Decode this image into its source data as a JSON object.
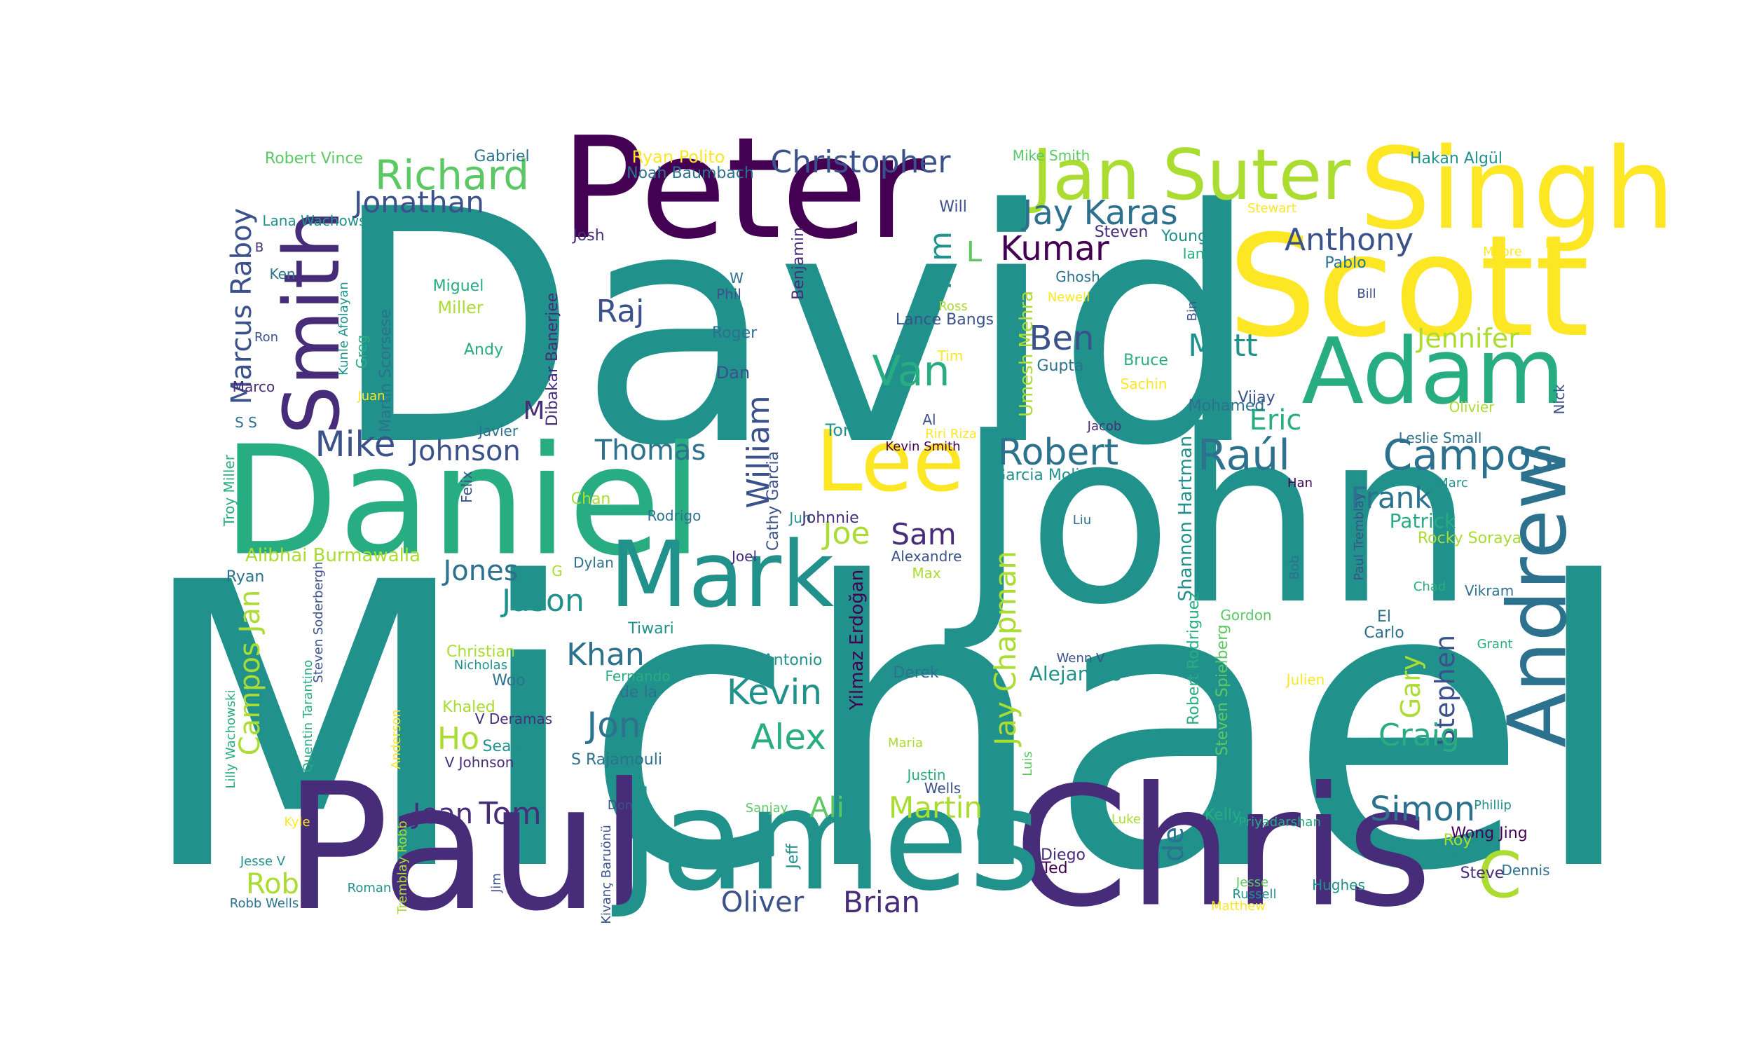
{
  "colors": {
    "c1": "#440154",
    "c2": "#472c7a",
    "c3": "#3b518b",
    "c4": "#2c718e",
    "c5": "#21918c",
    "c6": "#27ad81",
    "c7": "#5cc863",
    "c8": "#aadc32",
    "c9": "#fde725"
  },
  "words": [
    {
      "text": "Michael",
      "color": "c5"
    },
    {
      "text": "David",
      "color": "c5"
    },
    {
      "text": "John",
      "color": "c5"
    },
    {
      "text": "Daniel",
      "color": "c6"
    },
    {
      "text": "Paul",
      "color": "c2"
    },
    {
      "text": "Chris",
      "color": "c2"
    },
    {
      "text": "James",
      "color": "c5"
    },
    {
      "text": "Peter",
      "color": "c1"
    },
    {
      "text": "Scott",
      "color": "c9"
    },
    {
      "text": "Singh",
      "color": "c9"
    },
    {
      "text": "Adam",
      "color": "c6"
    },
    {
      "text": "Andrew",
      "color": "c4"
    },
    {
      "text": "Mark",
      "color": "c5"
    },
    {
      "text": "Lee",
      "color": "c9"
    },
    {
      "text": "Smith",
      "color": "c2"
    },
    {
      "text": "Jan Suter",
      "color": "c8"
    },
    {
      "text": "C",
      "color": "c8"
    },
    {
      "text": "Campos",
      "color": "c4"
    },
    {
      "text": "Raúl",
      "color": "c4"
    },
    {
      "text": "Richard",
      "color": "c7"
    },
    {
      "text": "Christopher",
      "color": "c3"
    },
    {
      "text": "Jonathan",
      "color": "c3"
    },
    {
      "text": "Marcus Raboy",
      "color": "c3"
    },
    {
      "text": "Jay Karas",
      "color": "c4"
    },
    {
      "text": "Kumar",
      "color": "c1"
    },
    {
      "text": "Anthony",
      "color": "c3"
    },
    {
      "text": "Kim",
      "color": "c5"
    },
    {
      "text": "L",
      "color": "c7"
    },
    {
      "text": "Raj",
      "color": "c3"
    },
    {
      "text": "Van",
      "color": "c6"
    },
    {
      "text": "Ben",
      "color": "c3"
    },
    {
      "text": "Matt",
      "color": "c5"
    },
    {
      "text": "Jennifer",
      "color": "c8"
    },
    {
      "text": "Robert",
      "color": "c4"
    },
    {
      "text": "Eric",
      "color": "c6"
    },
    {
      "text": "Mike",
      "color": "c3"
    },
    {
      "text": "Johnson",
      "color": "c3"
    },
    {
      "text": "Thomas",
      "color": "c4"
    },
    {
      "text": "William",
      "color": "c3"
    },
    {
      "text": "Frank",
      "color": "c4"
    },
    {
      "text": "Patrick",
      "color": "c6"
    },
    {
      "text": "Sam",
      "color": "c2"
    },
    {
      "text": "Joe",
      "color": "c8"
    },
    {
      "text": "Jones",
      "color": "c4"
    },
    {
      "text": "Jason",
      "color": "c5"
    },
    {
      "text": "Alibhai Burmawalla",
      "color": "c8"
    },
    {
      "text": "Campos Jan",
      "color": "c8"
    },
    {
      "text": "Khan",
      "color": "c4"
    },
    {
      "text": "Kevin",
      "color": "c5"
    },
    {
      "text": "Jon",
      "color": "c4"
    },
    {
      "text": "Alex",
      "color": "c6"
    },
    {
      "text": "Jay Chapman",
      "color": "c8"
    },
    {
      "text": "Alejandro",
      "color": "c5"
    },
    {
      "text": "Gary",
      "color": "c8"
    },
    {
      "text": "Stephen",
      "color": "c3"
    },
    {
      "text": "Craig",
      "color": "c6"
    },
    {
      "text": "Ho",
      "color": "c8"
    },
    {
      "text": "Tom",
      "color": "c2"
    },
    {
      "text": "Jean",
      "color": "c2"
    },
    {
      "text": "Ali",
      "color": "c7"
    },
    {
      "text": "Martin",
      "color": "c8"
    },
    {
      "text": "Simon",
      "color": "c4"
    },
    {
      "text": "Rob",
      "color": "c8"
    },
    {
      "text": "Oliver",
      "color": "c3"
    },
    {
      "text": "Brian",
      "color": "c2"
    },
    {
      "text": "de",
      "color": "c4"
    },
    {
      "text": "M",
      "color": "c2"
    },
    {
      "text": "Robert Vince",
      "color": "c7"
    },
    {
      "text": "Gabriel",
      "color": "c4"
    },
    {
      "text": "Ryan Polito",
      "color": "c9"
    },
    {
      "text": "Noah Baumbach",
      "color": "c4"
    },
    {
      "text": "Mike Smith",
      "color": "c7"
    },
    {
      "text": "Hakan Algül",
      "color": "c5"
    },
    {
      "text": "Lana Wachowski",
      "color": "c5"
    },
    {
      "text": "Josh",
      "color": "c2"
    },
    {
      "text": "Will",
      "color": "c3"
    },
    {
      "text": "Stewart",
      "color": "c9"
    },
    {
      "text": "Steven",
      "color": "c2"
    },
    {
      "text": "Young",
      "color": "c5"
    },
    {
      "text": "Ian",
      "color": "c6"
    },
    {
      "text": "Moore",
      "color": "c9"
    },
    {
      "text": "Pablo",
      "color": "c4"
    },
    {
      "text": "Ghosh",
      "color": "c4"
    },
    {
      "text": "Newell",
      "color": "c9"
    },
    {
      "text": "Bill",
      "color": "c3"
    },
    {
      "text": "Benjamin",
      "color": "c2"
    },
    {
      "text": "Dibakar Banerjee",
      "color": "c2"
    },
    {
      "text": "B",
      "color": "c2"
    },
    {
      "text": "Ken",
      "color": "c4"
    },
    {
      "text": "Ron",
      "color": "c3"
    },
    {
      "text": "Kunle Afolayan",
      "color": "c5"
    },
    {
      "text": "Martin Scorsese",
      "color": "c4"
    },
    {
      "text": "Greg",
      "color": "c6"
    },
    {
      "text": "Miguel",
      "color": "c6"
    },
    {
      "text": "Miller",
      "color": "c8"
    },
    {
      "text": "Andy",
      "color": "c6"
    },
    {
      "text": "Marco",
      "color": "c2"
    },
    {
      "text": "Juan",
      "color": "c9"
    },
    {
      "text": "W",
      "color": "c4"
    },
    {
      "text": "Phil",
      "color": "c3"
    },
    {
      "text": "Roger",
      "color": "c4"
    },
    {
      "text": "Dan",
      "color": "c3"
    },
    {
      "text": "Ross",
      "color": "c8"
    },
    {
      "text": "Lance Bangs",
      "color": "c3"
    },
    {
      "text": "Tim",
      "color": "c9"
    },
    {
      "text": "Umesh Mehra",
      "color": "c8"
    },
    {
      "text": "Gupta",
      "color": "c4"
    },
    {
      "text": "Bruce",
      "color": "c6"
    },
    {
      "text": "Sachin",
      "color": "c9"
    },
    {
      "text": "Bin",
      "color": "c3"
    },
    {
      "text": "Vijay",
      "color": "c3"
    },
    {
      "text": "Mohamed",
      "color": "c4"
    },
    {
      "text": "Olivier",
      "color": "c8"
    },
    {
      "text": "Nick",
      "color": "c3"
    },
    {
      "text": "S S",
      "color": "c4"
    },
    {
      "text": "Javier",
      "color": "c4"
    },
    {
      "text": "Tony",
      "color": "c5"
    },
    {
      "text": "Al",
      "color": "c3"
    },
    {
      "text": "Riri Riza",
      "color": "c9"
    },
    {
      "text": "Kevin Smith",
      "color": "c1"
    },
    {
      "text": "Jacob",
      "color": "c2"
    },
    {
      "text": "Leslie Small",
      "color": "c4"
    },
    {
      "text": "Troy Miller",
      "color": "c6"
    },
    {
      "text": "Felix",
      "color": "c3"
    },
    {
      "text": "Chan",
      "color": "c8"
    },
    {
      "text": "Rodrigo",
      "color": "c4"
    },
    {
      "text": "Cathy Garcia",
      "color": "c3"
    },
    {
      "text": "Jun",
      "color": "c5"
    },
    {
      "text": "Johnnie",
      "color": "c2"
    },
    {
      "text": "Garcia Molina",
      "color": "c5"
    },
    {
      "text": "Shannon Hartman",
      "color": "c5"
    },
    {
      "text": "Han",
      "color": "c1"
    },
    {
      "text": "Marc",
      "color": "c5"
    },
    {
      "text": "Liu",
      "color": "c4"
    },
    {
      "text": "Paul Tremblay",
      "color": "c3"
    },
    {
      "text": "Bob",
      "color": "c4"
    },
    {
      "text": "Rocky Soraya",
      "color": "c8"
    },
    {
      "text": "Ryan",
      "color": "c4"
    },
    {
      "text": "Dylan",
      "color": "c4"
    },
    {
      "text": "Joel",
      "color": "c2"
    },
    {
      "text": "Alexandre",
      "color": "c3"
    },
    {
      "text": "Max",
      "color": "c8"
    },
    {
      "text": "Steven Soderbergh",
      "color": "c3"
    },
    {
      "text": "G",
      "color": "c8"
    },
    {
      "text": "Tiwari",
      "color": "c5"
    },
    {
      "text": "Yilmaz Erdoğan",
      "color": "c1"
    },
    {
      "text": "Robert Rodriguez",
      "color": "c6"
    },
    {
      "text": "Steven Spielberg",
      "color": "c7"
    },
    {
      "text": "Gordon",
      "color": "c7"
    },
    {
      "text": "El",
      "color": "c4"
    },
    {
      "text": "Carlo",
      "color": "c4"
    },
    {
      "text": "Chad",
      "color": "c6"
    },
    {
      "text": "Vikram",
      "color": "c4"
    },
    {
      "text": "Grant",
      "color": "c6"
    },
    {
      "text": "Christian",
      "color": "c8"
    },
    {
      "text": "Nicholas",
      "color": "c5"
    },
    {
      "text": "Woo",
      "color": "c4"
    },
    {
      "text": "Antonio",
      "color": "c5"
    },
    {
      "text": "Fernando",
      "color": "c6"
    },
    {
      "text": "de la",
      "color": "c4"
    },
    {
      "text": "Wenn V",
      "color": "c3"
    },
    {
      "text": "Derek",
      "color": "c4"
    },
    {
      "text": "Julien",
      "color": "c9"
    },
    {
      "text": "Lilly Wachowski",
      "color": "c6"
    },
    {
      "text": "Quentin Tarantino",
      "color": "c6"
    },
    {
      "text": "Anderson",
      "color": "c9"
    },
    {
      "text": "Khaled",
      "color": "c8"
    },
    {
      "text": "V Deramas",
      "color": "c2"
    },
    {
      "text": "Sean",
      "color": "c5"
    },
    {
      "text": "V Johnson",
      "color": "c2"
    },
    {
      "text": "S Rajamouli",
      "color": "c4"
    },
    {
      "text": "Maria",
      "color": "c8"
    },
    {
      "text": "Luis",
      "color": "c7"
    },
    {
      "text": "Justin",
      "color": "c6"
    },
    {
      "text": "Wells",
      "color": "c3"
    },
    {
      "text": "Kyle",
      "color": "c9"
    },
    {
      "text": "Don",
      "color": "c3"
    },
    {
      "text": "Sanjay",
      "color": "c7"
    },
    {
      "text": "Kelly",
      "color": "c6"
    },
    {
      "text": "Luke",
      "color": "c8"
    },
    {
      "text": "Priyadarshan",
      "color": "c6"
    },
    {
      "text": "Phillip",
      "color": "c5"
    },
    {
      "text": "Wong Jing",
      "color": "c1"
    },
    {
      "text": "Roy",
      "color": "c8"
    },
    {
      "text": "Tremblay Robb",
      "color": "c8"
    },
    {
      "text": "Jesse V",
      "color": "c5"
    },
    {
      "text": "Jim",
      "color": "c3"
    },
    {
      "text": "Kivanç Baruönü",
      "color": "c3"
    },
    {
      "text": "Jeff",
      "color": "c5"
    },
    {
      "text": "Diego",
      "color": "c2"
    },
    {
      "text": "Sharma",
      "color": "c5"
    },
    {
      "text": "Steve",
      "color": "c2"
    },
    {
      "text": "Dennis",
      "color": "c4"
    },
    {
      "text": "Ted",
      "color": "c1"
    },
    {
      "text": "Jesse",
      "color": "c7"
    },
    {
      "text": "Russell",
      "color": "c5"
    },
    {
      "text": "Hughes",
      "color": "c5"
    },
    {
      "text": "Robb Wells",
      "color": "c4"
    },
    {
      "text": "Roman",
      "color": "c5"
    },
    {
      "text": "Matthew",
      "color": "c9"
    }
  ]
}
